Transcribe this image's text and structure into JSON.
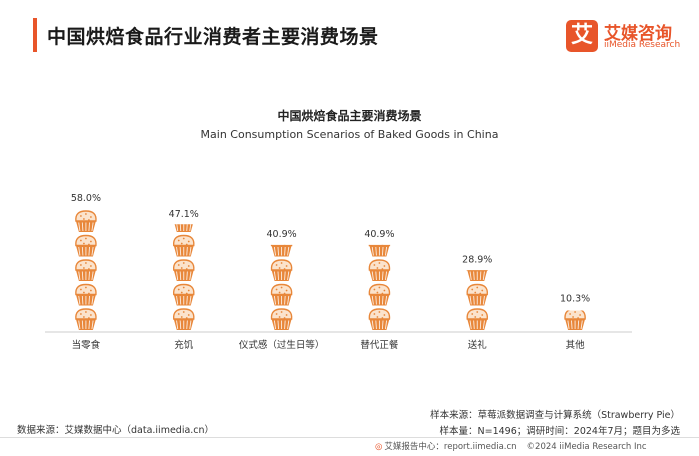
{
  "header": {
    "title": "中国烘焙食品行业消费者主要消费场景",
    "logo_mark": "艾",
    "logo_cn": "艾媒咨询",
    "logo_en": "iiMedia Research"
  },
  "chart_data": {
    "type": "bar",
    "title": "中国烘焙食品主要消费场景",
    "subtitle": "Main Consumption Scenarios of Baked Goods in China",
    "categories": [
      "当零食",
      "充饥",
      "仪式感（过生日等）",
      "替代正餐",
      "送礼",
      "其他"
    ],
    "values": [
      58.0,
      47.1,
      40.9,
      40.9,
      28.9,
      10.3
    ],
    "value_labels": [
      "58.0%",
      "47.1%",
      "40.9%",
      "40.9%",
      "28.9%",
      "10.3%"
    ],
    "unit": "%",
    "ylim": [
      0,
      60
    ],
    "mark": "muffin-icon",
    "icon_unit_percent": 11.6
  },
  "footer": {
    "source_left": "数据来源：艾媒数据中心（data.iimedia.cn）",
    "sample_source": "样本来源：草莓派数据调查与计算系统（Strawberry Pie）",
    "sample_info": "样本量：N=1496；调研时间：2024年7月；题目为多选",
    "report_center": "艾媒报告中心：report.iimedia.cn",
    "copyright": "©2024 iiMedia Research Inc"
  },
  "colors": {
    "accent": "#e8552a",
    "muffin_cup": "#e8873a",
    "muffin_top": "#fbe3cc",
    "axis": "#cccccc"
  }
}
